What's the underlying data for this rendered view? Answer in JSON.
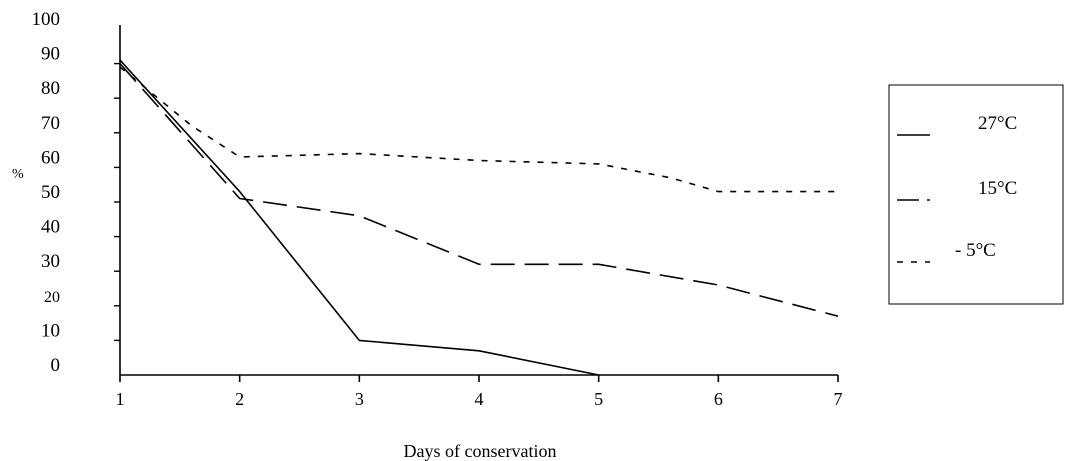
{
  "chart_data": {
    "type": "line",
    "title": "",
    "xlabel": "Days of conservation",
    "ylabel": "%",
    "x": [
      1,
      2,
      3,
      4,
      5,
      6,
      7
    ],
    "xlim": [
      1,
      7
    ],
    "ylim": [
      0,
      100
    ],
    "y_tick_labels": [
      "0",
      "10",
      "20",
      "30",
      "40",
      "50",
      "60",
      "70",
      "80",
      "90",
      "100"
    ],
    "x_tick_labels": [
      "1",
      "2",
      "3",
      "4",
      "5",
      "6",
      "7"
    ],
    "grid": false,
    "legend_position": "right",
    "series": [
      {
        "name": "27°C",
        "style": "solid",
        "points": [
          [
            1,
            91
          ],
          [
            2,
            53
          ],
          [
            3,
            10
          ],
          [
            4,
            7
          ],
          [
            5,
            0
          ]
        ]
      },
      {
        "name": "15°C",
        "style": "dashed",
        "points": [
          [
            1,
            90
          ],
          [
            2,
            51
          ],
          [
            3,
            46
          ],
          [
            4,
            32
          ],
          [
            5,
            32
          ],
          [
            6,
            26
          ],
          [
            7,
            17
          ]
        ]
      },
      {
        "name": "- 5°C",
        "style": "dotted",
        "points": [
          [
            1,
            89
          ],
          [
            1.6,
            72
          ],
          [
            2,
            63
          ],
          [
            3,
            64
          ],
          [
            4,
            62
          ],
          [
            5,
            61
          ],
          [
            5.6,
            57
          ],
          [
            6,
            53
          ],
          [
            7,
            53
          ]
        ]
      }
    ]
  }
}
